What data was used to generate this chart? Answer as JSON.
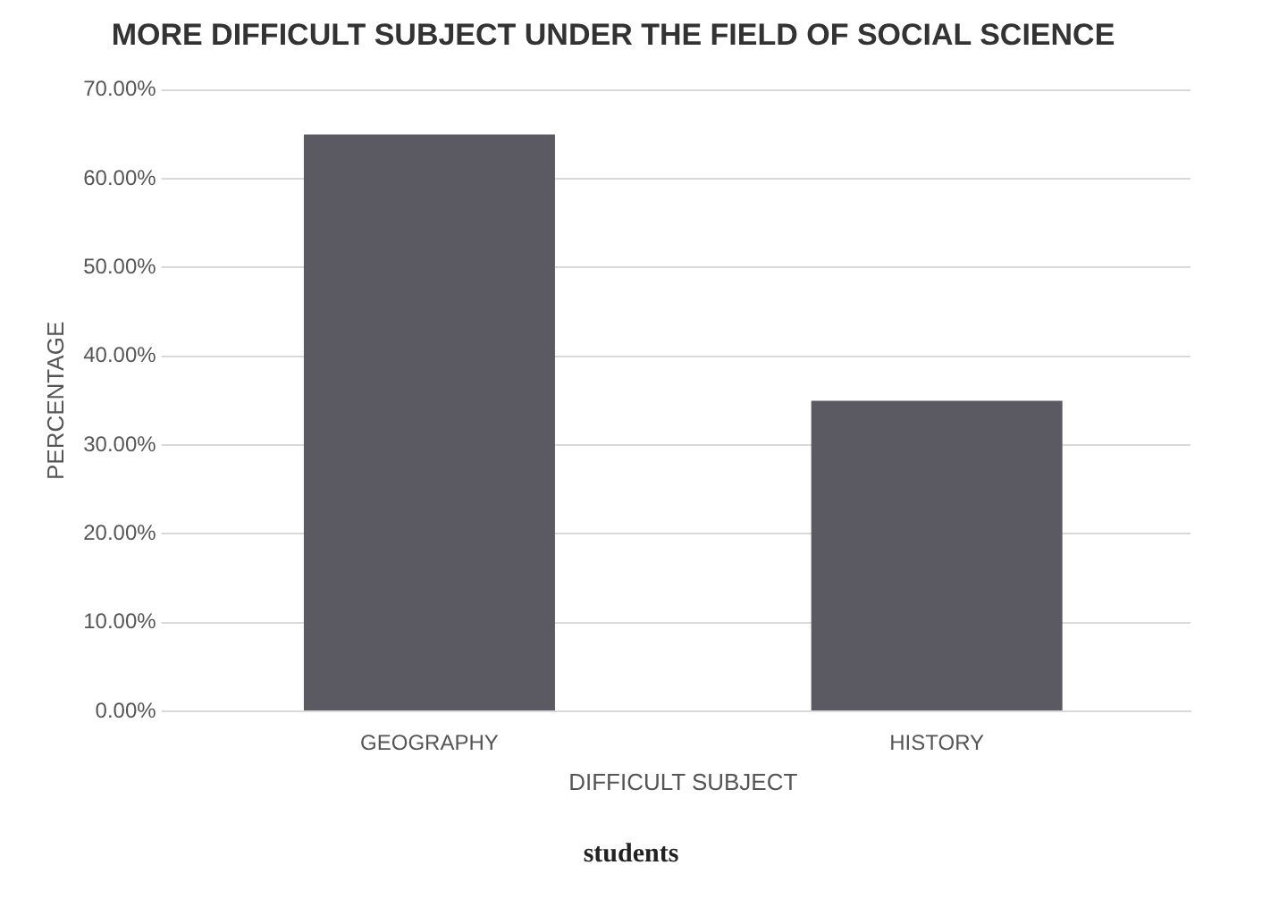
{
  "chart_data": {
    "type": "bar",
    "title": "MORE DIFFICULT SUBJECT UNDER THE FIELD OF SOCIAL SCIENCE",
    "xlabel": "DIFFICULT SUBJECT",
    "ylabel": "PERCENTAGE",
    "categories": [
      "GEOGRAPHY",
      "HISTORY"
    ],
    "values": [
      65,
      35
    ],
    "color": "#5b5a63",
    "ylim": [
      0,
      70
    ],
    "yticks": [
      {
        "value": 0,
        "label": "0.00%"
      },
      {
        "value": 10,
        "label": "10.00%"
      },
      {
        "value": 20,
        "label": "20.00%"
      },
      {
        "value": 30,
        "label": "30.00%"
      },
      {
        "value": 40,
        "label": "40.00%"
      },
      {
        "value": 50,
        "label": "50.00%"
      },
      {
        "value": 60,
        "label": "60.00%"
      },
      {
        "value": 70,
        "label": "70.00%"
      }
    ],
    "grid": "y",
    "legend": false,
    "annotations": [
      "students"
    ]
  }
}
